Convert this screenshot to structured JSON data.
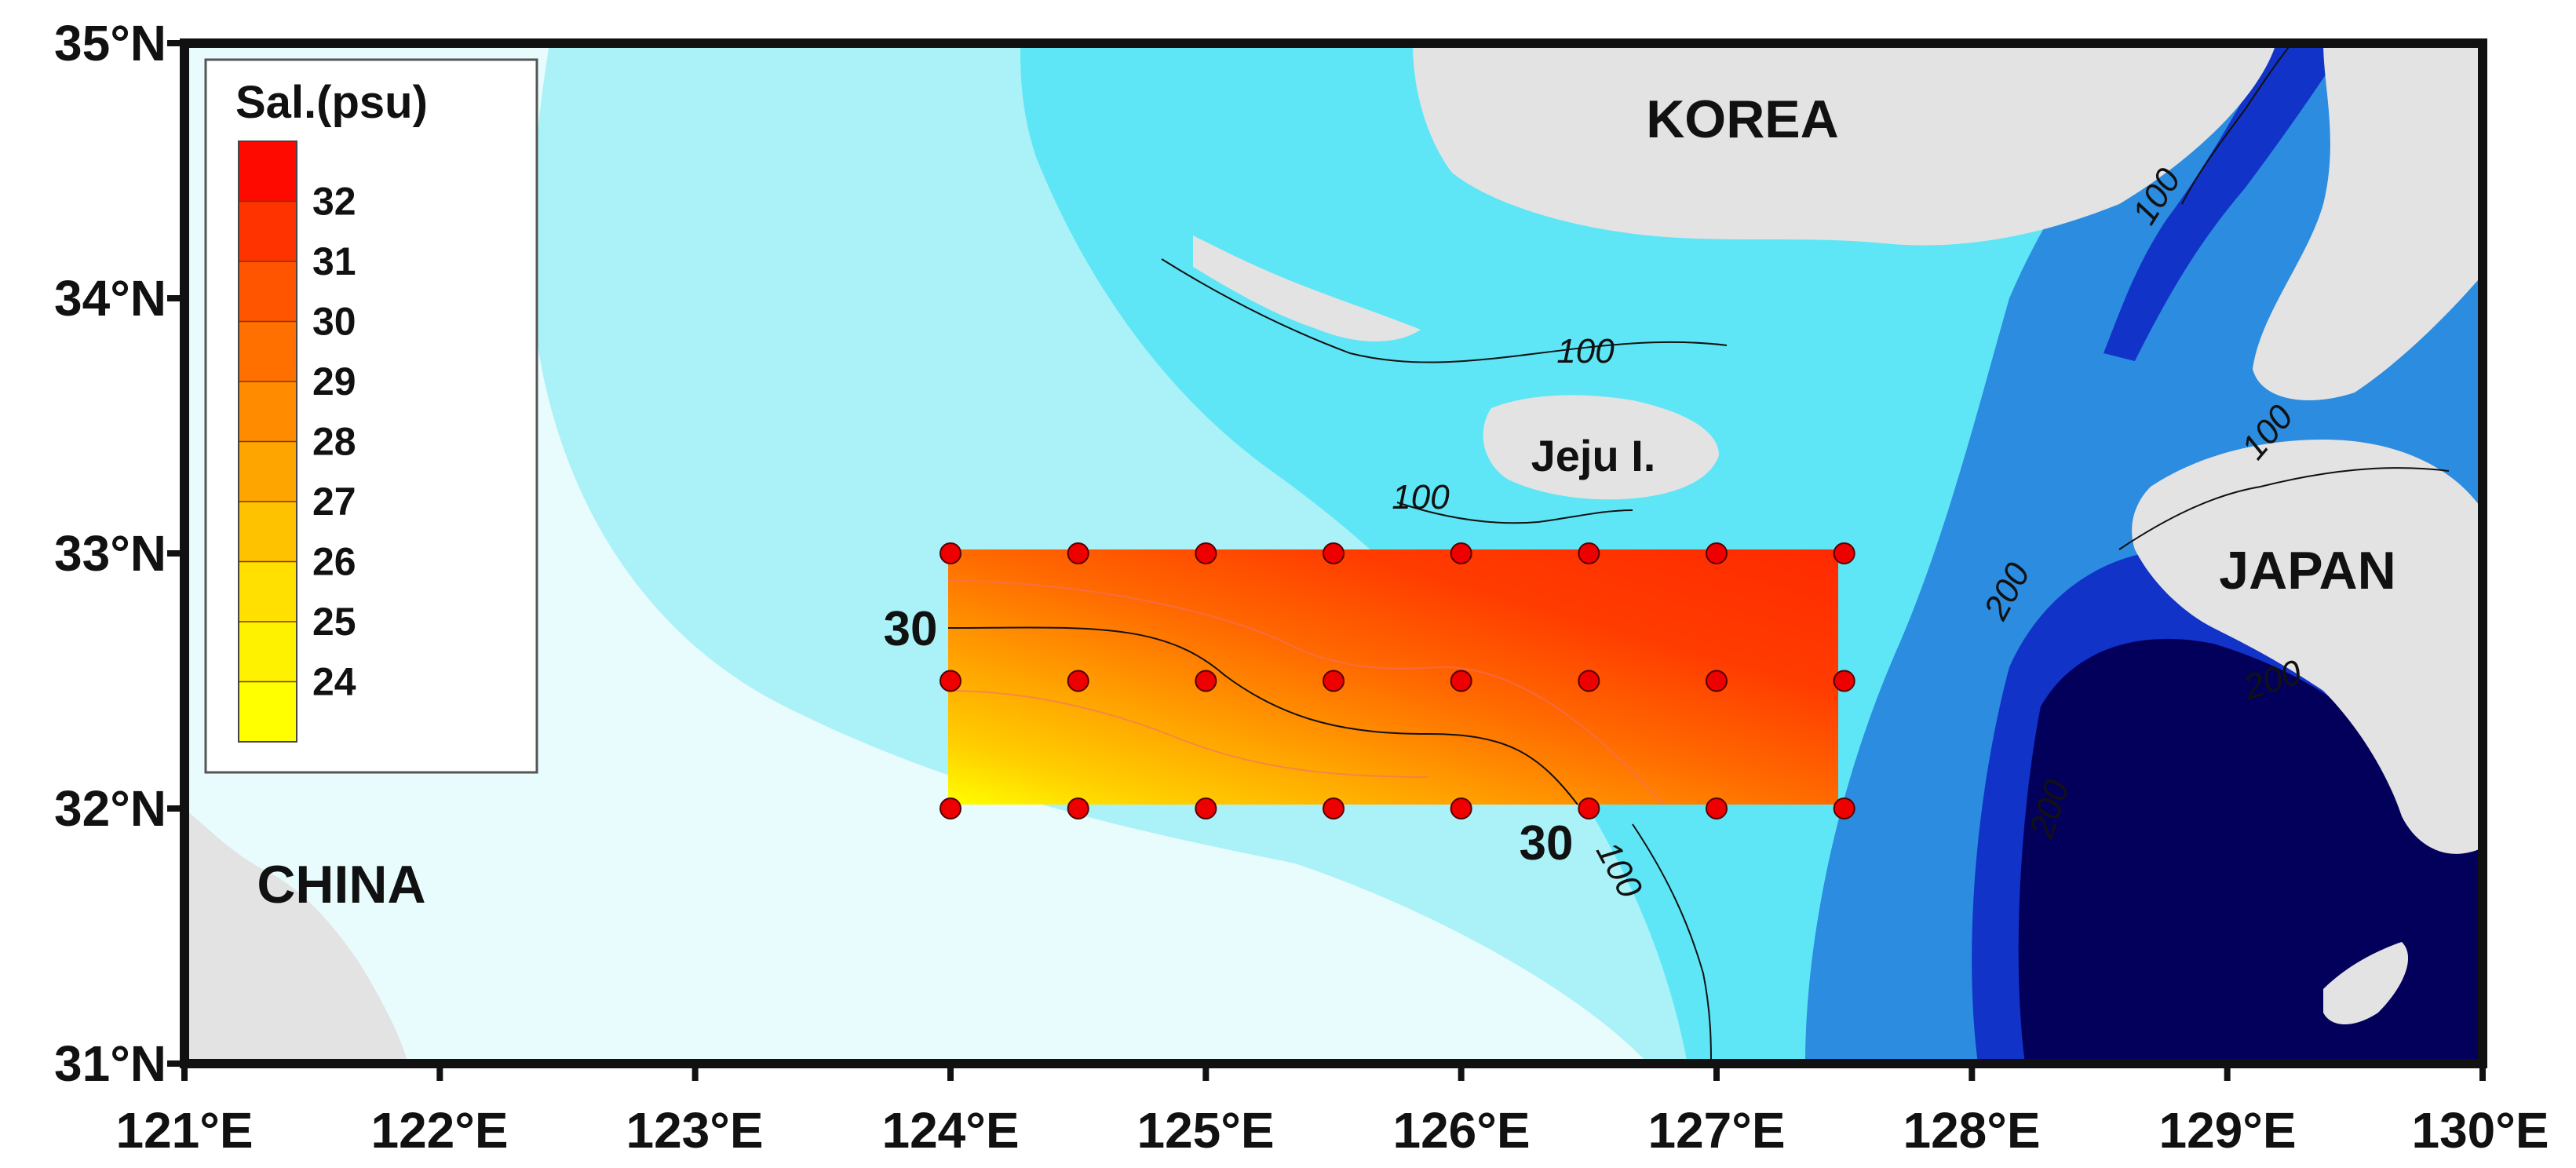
{
  "map": {
    "lon_range": [
      121,
      130
    ],
    "lat_range": [
      31,
      35
    ],
    "lon_ticks": [
      "121°E",
      "122°E",
      "123°E",
      "124°E",
      "125°E",
      "126°E",
      "127°E",
      "128°E",
      "129°E",
      "130°E"
    ],
    "lat_ticks": [
      "31°N",
      "32°N",
      "33°N",
      "34°N",
      "35°N"
    ],
    "land_labels": {
      "korea": "KOREA",
      "japan": "JAPAN",
      "china": "CHINA",
      "jeju": "Jeju I."
    },
    "bathymetry_labels": {
      "korea_shelf": "100",
      "japan_north": "100",
      "japan_mid": "100",
      "jeju_sw": "100",
      "south": "100",
      "trough_a": "200",
      "trough_b": "200",
      "trough_c": "200"
    },
    "salinity_labels": {
      "west": "30",
      "south": "30"
    }
  },
  "legend": {
    "title": "Sal.(psu)",
    "ticks": [
      "32",
      "31",
      "30",
      "29",
      "28",
      "27",
      "26",
      "25",
      "24"
    ],
    "colors": [
      "#ff0a00",
      "#ff3300",
      "#ff5500",
      "#ff7000",
      "#ff8c00",
      "#ffa500",
      "#ffc200",
      "#ffe000",
      "#fff200",
      "#ffff00"
    ]
  },
  "salinity_field": {
    "lon": [
      124,
      124.5,
      125,
      125.5,
      126,
      126.5,
      127,
      127.5
    ],
    "lat": [
      33,
      32.5,
      32
    ],
    "station_color": "#ee0000",
    "stations": [
      [
        124,
        33
      ],
      [
        124.5,
        33
      ],
      [
        125,
        33
      ],
      [
        125.5,
        33
      ],
      [
        126,
        33
      ],
      [
        126.5,
        33
      ],
      [
        127,
        33
      ],
      [
        127.5,
        33
      ],
      [
        124,
        32.5
      ],
      [
        124.5,
        32.5
      ],
      [
        125,
        32.5
      ],
      [
        125.5,
        32.5
      ],
      [
        126,
        32.5
      ],
      [
        126.5,
        32.5
      ],
      [
        127,
        32.5
      ],
      [
        127.5,
        32.5
      ],
      [
        124,
        32
      ],
      [
        124.5,
        32
      ],
      [
        125,
        32
      ],
      [
        125.5,
        32
      ],
      [
        126,
        32
      ],
      [
        126.5,
        32
      ],
      [
        127,
        32
      ],
      [
        127.5,
        32
      ]
    ]
  },
  "colors": {
    "land": "#e3e3e3",
    "shallow": "#e8fbfd",
    "shelf": "#aaf2f8",
    "mid": "#5ee6f6",
    "deep": "#2b8ce0",
    "deeper": "#1233c8",
    "deepest": "#03005c"
  }
}
